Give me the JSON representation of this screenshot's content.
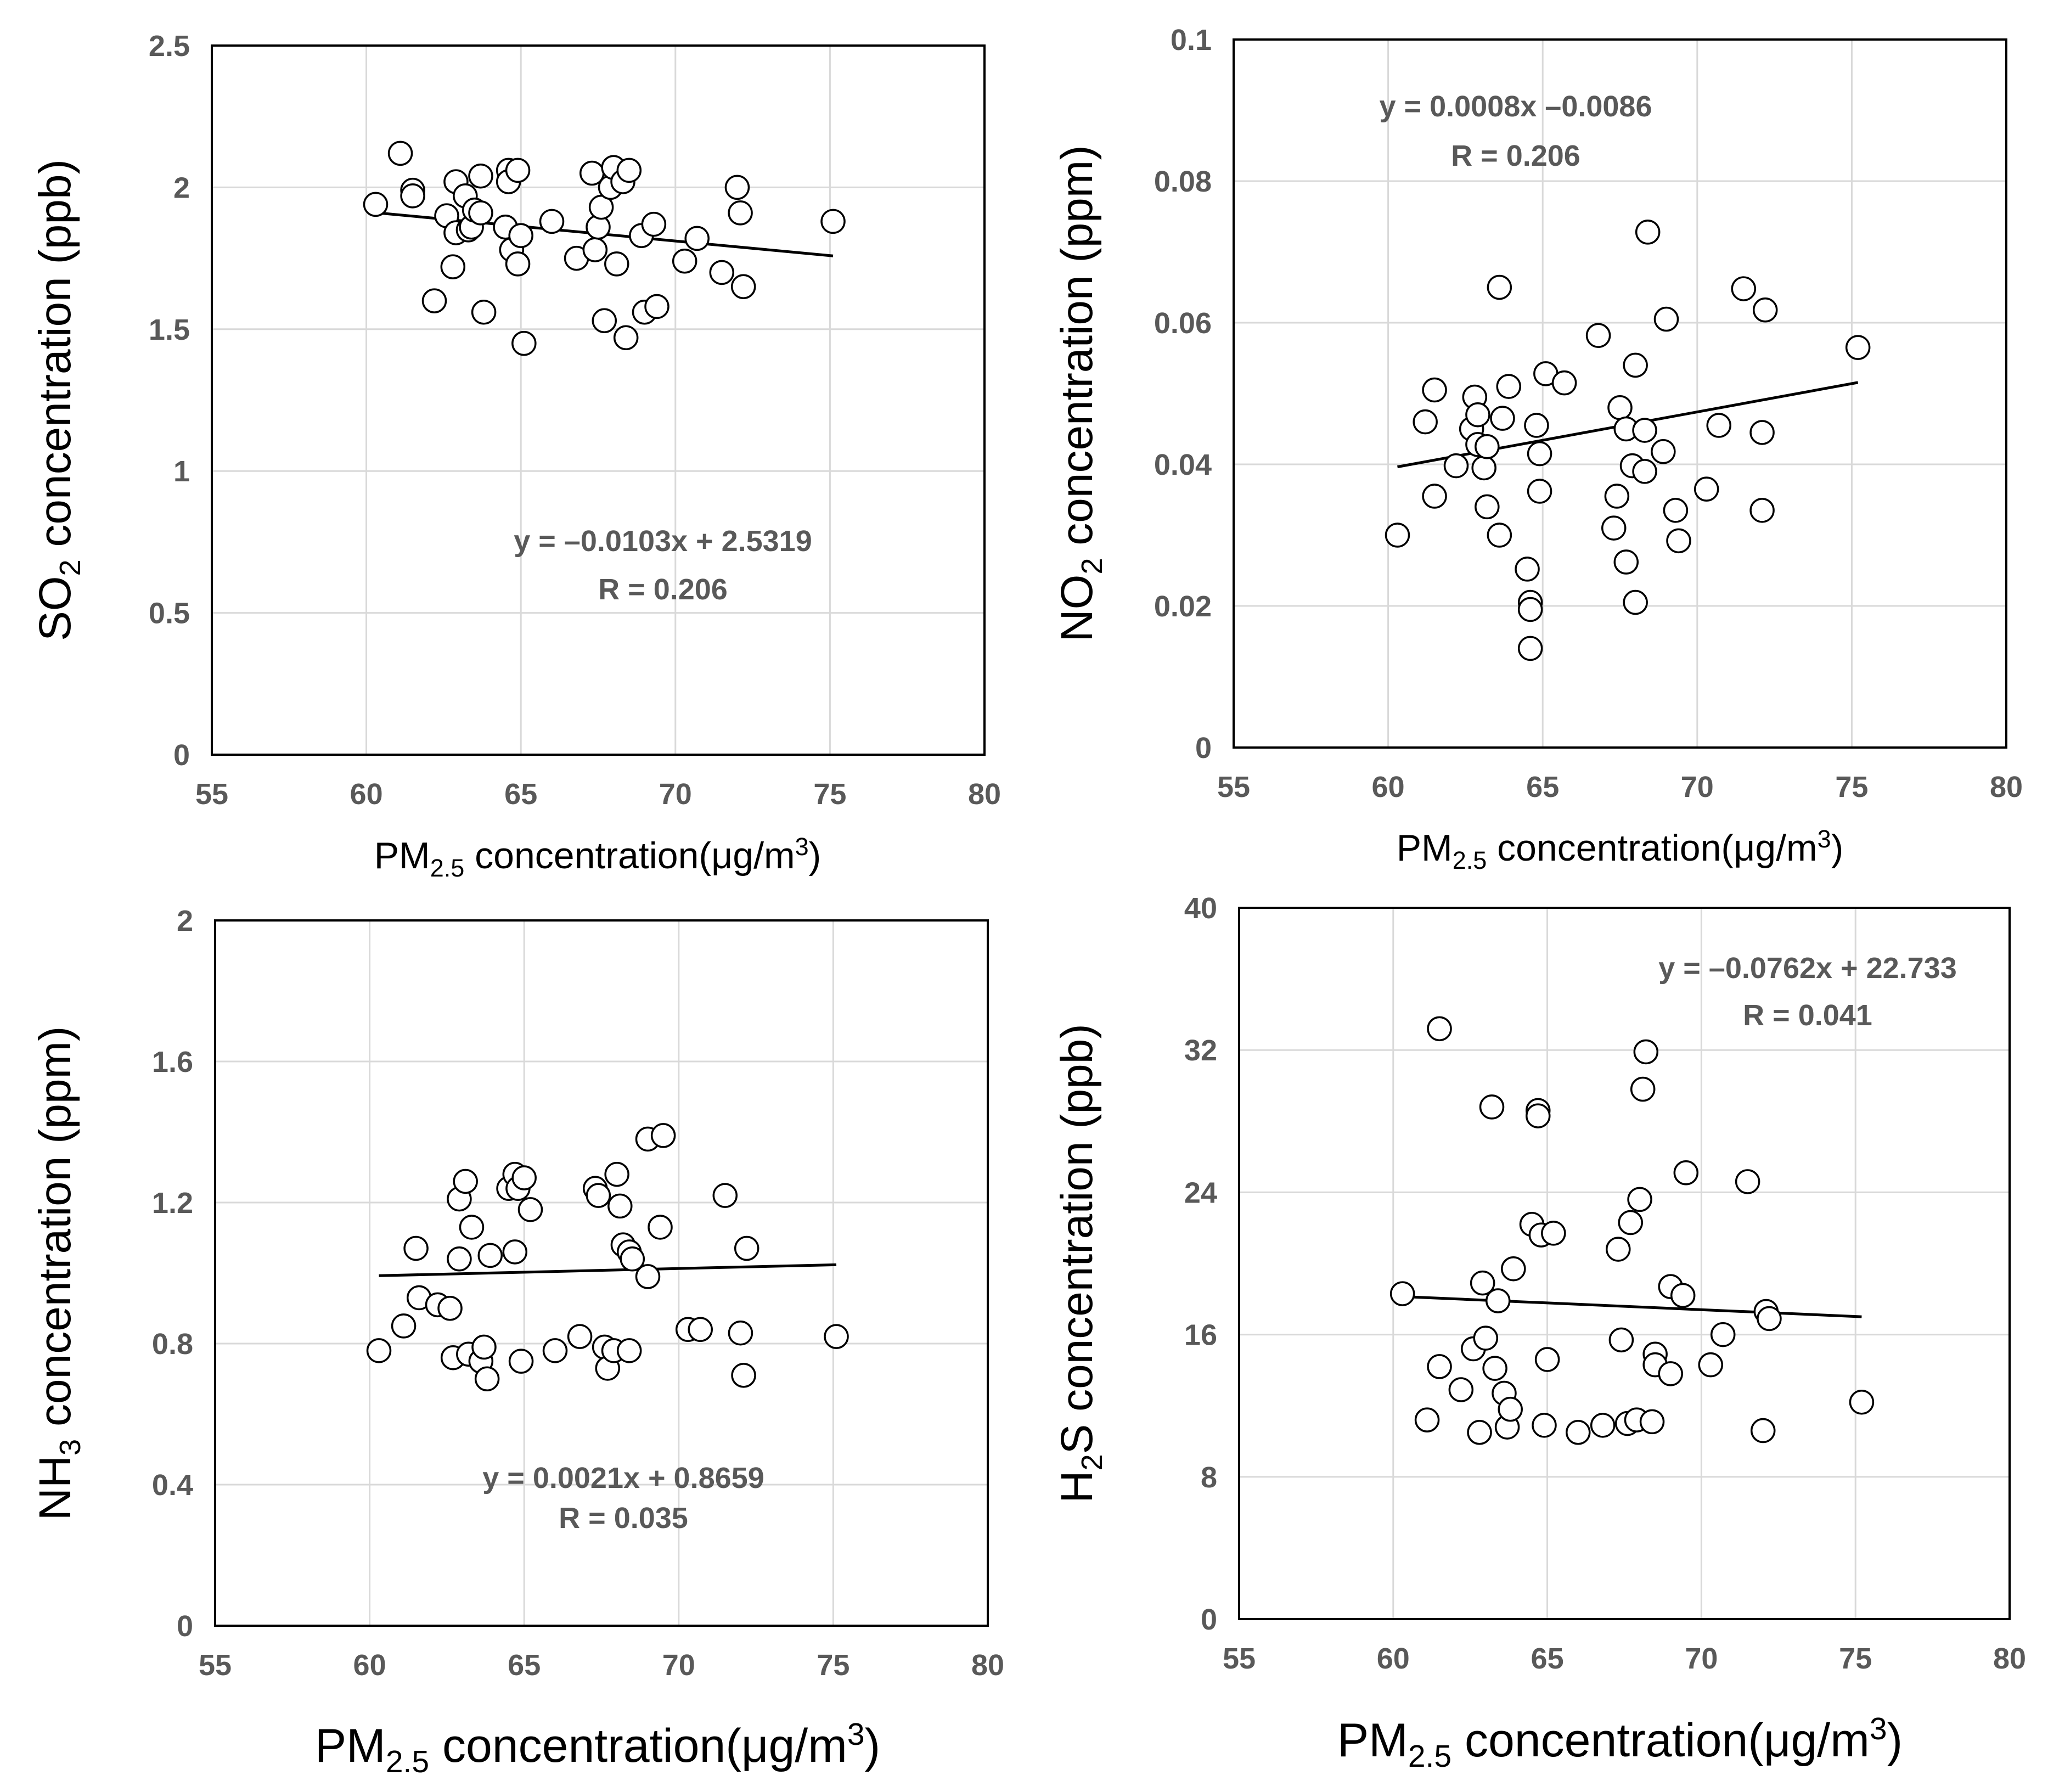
{
  "chart_data": [
    {
      "type": "scatter",
      "ylabel": {
        "main": "SO",
        "sub": "2",
        "rest": " concentration (ppb)"
      },
      "xlabel": {
        "main": "PM",
        "sub": "2.5",
        "rest": " concentration(μg/m",
        "sup": "3",
        "close": ")"
      },
      "xlim": [
        55,
        80
      ],
      "ylim": [
        0,
        2.5
      ],
      "xticks": [
        55,
        60,
        65,
        70,
        75,
        80
      ],
      "yticks": [
        0,
        0.5,
        1,
        1.5,
        2,
        2.5
      ],
      "ytick_labels": [
        "0",
        "0.5",
        "1",
        "1.5",
        "2",
        "2.5"
      ],
      "grid": true,
      "equation": "y = –0.0103x + 2.5319",
      "r_text": "R = 0.206",
      "trend": {
        "slope": -0.0103,
        "intercept": 2.5319,
        "x_range": [
          60.3,
          75.1
        ]
      },
      "points": [
        [
          60.3,
          1.94
        ],
        [
          61.1,
          2.12
        ],
        [
          61.5,
          1.99
        ],
        [
          61.5,
          1.97
        ],
        [
          62.2,
          1.6
        ],
        [
          62.6,
          1.9
        ],
        [
          62.8,
          1.72
        ],
        [
          62.9,
          2.02
        ],
        [
          62.9,
          1.84
        ],
        [
          63.2,
          1.97
        ],
        [
          63.3,
          1.85
        ],
        [
          63.4,
          1.86
        ],
        [
          63.5,
          1.92
        ],
        [
          63.7,
          1.91
        ],
        [
          63.7,
          2.04
        ],
        [
          63.8,
          1.56
        ],
        [
          64.5,
          1.86
        ],
        [
          64.6,
          2.06
        ],
        [
          64.6,
          2.02
        ],
        [
          64.7,
          1.78
        ],
        [
          64.9,
          2.06
        ],
        [
          64.9,
          1.73
        ],
        [
          65.0,
          1.83
        ],
        [
          65.1,
          1.45
        ],
        [
          66.0,
          1.88
        ],
        [
          66.8,
          1.75
        ],
        [
          67.3,
          2.05
        ],
        [
          67.4,
          1.78
        ],
        [
          67.5,
          1.86
        ],
        [
          67.6,
          1.93
        ],
        [
          67.7,
          1.53
        ],
        [
          67.9,
          2.0
        ],
        [
          68.0,
          2.07
        ],
        [
          68.1,
          1.73
        ],
        [
          68.3,
          2.02
        ],
        [
          68.4,
          1.47
        ],
        [
          68.5,
          2.06
        ],
        [
          68.9,
          1.83
        ],
        [
          69.0,
          1.56
        ],
        [
          69.3,
          1.87
        ],
        [
          69.4,
          1.58
        ],
        [
          70.3,
          1.74
        ],
        [
          70.7,
          1.82
        ],
        [
          71.5,
          1.7
        ],
        [
          72.0,
          2.0
        ],
        [
          72.1,
          1.91
        ],
        [
          72.2,
          1.65
        ],
        [
          75.1,
          1.88
        ]
      ]
    },
    {
      "type": "scatter",
      "ylabel": {
        "main": "NO",
        "sub": "2",
        "rest": " concentration (ppm)"
      },
      "xlabel": {
        "main": "PM",
        "sub": "2.5",
        "rest": " concentration(μg/m",
        "sup": "3",
        "close": ")"
      },
      "xlim": [
        55,
        80
      ],
      "ylim": [
        0,
        0.1
      ],
      "xticks": [
        55,
        60,
        65,
        70,
        75,
        80
      ],
      "yticks": [
        0,
        0.02,
        0.04,
        0.06,
        0.08,
        0.1
      ],
      "ytick_labels": [
        "0",
        "0.02",
        "0.04",
        "0.06",
        "0.08",
        "0.1"
      ],
      "grid": true,
      "equation": "y = 0.0008x –0.0086",
      "r_text": "R = 0.206",
      "trend": {
        "slope": 0.0008,
        "intercept": -0.0086,
        "x_range": [
          60.3,
          75.2
        ]
      },
      "points": [
        [
          60.3,
          0.03
        ],
        [
          61.2,
          0.046
        ],
        [
          61.5,
          0.0355
        ],
        [
          61.5,
          0.0505
        ],
        [
          62.2,
          0.0398
        ],
        [
          62.7,
          0.045
        ],
        [
          62.8,
          0.0495
        ],
        [
          62.9,
          0.0428
        ],
        [
          62.9,
          0.047
        ],
        [
          63.1,
          0.0395
        ],
        [
          63.2,
          0.0425
        ],
        [
          63.2,
          0.034
        ],
        [
          63.6,
          0.03
        ],
        [
          63.6,
          0.065
        ],
        [
          63.7,
          0.0465
        ],
        [
          63.9,
          0.051
        ],
        [
          64.5,
          0.0252
        ],
        [
          64.6,
          0.0205
        ],
        [
          64.6,
          0.0195
        ],
        [
          64.6,
          0.014
        ],
        [
          64.8,
          0.0455
        ],
        [
          64.9,
          0.0415
        ],
        [
          64.9,
          0.0362
        ],
        [
          65.1,
          0.0528
        ],
        [
          65.7,
          0.0515
        ],
        [
          66.8,
          0.0582
        ],
        [
          67.3,
          0.031
        ],
        [
          67.4,
          0.0355
        ],
        [
          67.5,
          0.048
        ],
        [
          67.7,
          0.0262
        ],
        [
          67.7,
          0.045
        ],
        [
          67.9,
          0.0398
        ],
        [
          68.0,
          0.054
        ],
        [
          68.0,
          0.0205
        ],
        [
          68.3,
          0.0448
        ],
        [
          68.3,
          0.039
        ],
        [
          68.4,
          0.0728
        ],
        [
          68.9,
          0.0418
        ],
        [
          69.0,
          0.0605
        ],
        [
          69.3,
          0.0335
        ],
        [
          69.4,
          0.0292
        ],
        [
          70.3,
          0.0365
        ],
        [
          70.7,
          0.0455
        ],
        [
          71.5,
          0.0648
        ],
        [
          72.1,
          0.0445
        ],
        [
          72.1,
          0.0335
        ],
        [
          72.2,
          0.0618
        ],
        [
          75.2,
          0.0565
        ]
      ]
    },
    {
      "type": "scatter",
      "ylabel": {
        "main": "NH",
        "sub": "3",
        "rest": " concentration (ppm)"
      },
      "xlabel": {
        "main": "PM",
        "sub": "2.5",
        "rest": " concentration(μg/m",
        "sup": "3",
        "close": ")"
      },
      "xlim": [
        55,
        80
      ],
      "ylim": [
        0,
        2
      ],
      "xticks": [
        55,
        60,
        65,
        70,
        75,
        80
      ],
      "yticks": [
        0,
        0.4,
        0.8,
        1.2,
        1.6,
        2
      ],
      "ytick_labels": [
        "0",
        "0.4",
        "0.8",
        "1.2",
        "1.6",
        "2"
      ],
      "grid": true,
      "equation": "y = 0.0021x + 0.8659",
      "r_text": "R = 0.035",
      "trend": {
        "slope": 0.0021,
        "intercept": 0.8659,
        "x_range": [
          60.3,
          75.1
        ]
      },
      "points": [
        [
          60.3,
          0.78
        ],
        [
          61.1,
          0.85
        ],
        [
          61.5,
          1.07
        ],
        [
          61.6,
          0.93
        ],
        [
          62.2,
          0.91
        ],
        [
          62.6,
          0.9
        ],
        [
          62.7,
          0.76
        ],
        [
          62.9,
          1.04
        ],
        [
          62.9,
          1.21
        ],
        [
          63.1,
          1.26
        ],
        [
          63.2,
          0.77
        ],
        [
          63.3,
          1.13
        ],
        [
          63.6,
          0.75
        ],
        [
          63.7,
          0.79
        ],
        [
          63.8,
          0.7
        ],
        [
          63.9,
          1.05
        ],
        [
          64.5,
          1.24
        ],
        [
          64.7,
          1.06
        ],
        [
          64.7,
          1.28
        ],
        [
          64.8,
          1.24
        ],
        [
          64.9,
          0.75
        ],
        [
          65.0,
          1.27
        ],
        [
          65.2,
          1.18
        ],
        [
          66.0,
          0.78
        ],
        [
          66.8,
          0.82
        ],
        [
          67.3,
          1.24
        ],
        [
          67.4,
          1.22
        ],
        [
          67.6,
          0.79
        ],
        [
          67.7,
          0.73
        ],
        [
          67.9,
          0.78
        ],
        [
          68.0,
          1.28
        ],
        [
          68.1,
          1.19
        ],
        [
          68.2,
          1.08
        ],
        [
          68.4,
          1.06
        ],
        [
          68.4,
          0.78
        ],
        [
          68.5,
          1.04
        ],
        [
          69.0,
          1.38
        ],
        [
          69.0,
          0.99
        ],
        [
          69.4,
          1.13
        ],
        [
          69.5,
          1.39
        ],
        [
          70.3,
          0.84
        ],
        [
          70.7,
          0.84
        ],
        [
          71.5,
          1.22
        ],
        [
          72.0,
          0.83
        ],
        [
          72.1,
          0.71
        ],
        [
          72.2,
          1.07
        ],
        [
          75.1,
          0.82
        ]
      ]
    },
    {
      "type": "scatter",
      "ylabel": {
        "main": "H",
        "sub": "2",
        "rest": "S concentration (ppb)"
      },
      "xlabel": {
        "main": "PM",
        "sub": "2.5",
        "rest": " concentration(μg/m",
        "sup": "3",
        "close": ")"
      },
      "xlim": [
        55,
        80
      ],
      "ylim": [
        0,
        40
      ],
      "xticks": [
        55,
        60,
        65,
        70,
        75,
        80
      ],
      "yticks": [
        0,
        8,
        16,
        24,
        32,
        40
      ],
      "ytick_labels": [
        "0",
        "8",
        "16",
        "24",
        "32",
        "40"
      ],
      "grid": true,
      "equation": "y = –0.0762x + 22.733",
      "r_text": "R = 0.041",
      "trend": {
        "slope": -0.0762,
        "intercept": 22.733,
        "x_range": [
          60.3,
          75.2
        ]
      },
      "points": [
        [
          60.3,
          18.3
        ],
        [
          61.1,
          11.2
        ],
        [
          61.5,
          33.2
        ],
        [
          61.5,
          14.2
        ],
        [
          62.2,
          12.9
        ],
        [
          62.6,
          15.2
        ],
        [
          62.8,
          10.5
        ],
        [
          62.9,
          18.9
        ],
        [
          63.0,
          15.8
        ],
        [
          63.2,
          28.8
        ],
        [
          63.3,
          14.1
        ],
        [
          63.4,
          17.9
        ],
        [
          63.6,
          12.7
        ],
        [
          63.7,
          10.8
        ],
        [
          63.8,
          11.8
        ],
        [
          63.9,
          19.7
        ],
        [
          64.5,
          22.2
        ],
        [
          64.7,
          28.6
        ],
        [
          64.7,
          28.3
        ],
        [
          64.8,
          21.6
        ],
        [
          64.9,
          10.9
        ],
        [
          65.0,
          14.6
        ],
        [
          65.2,
          21.7
        ],
        [
          66.0,
          10.5
        ],
        [
          66.8,
          10.9
        ],
        [
          67.3,
          20.8
        ],
        [
          67.4,
          15.7
        ],
        [
          67.6,
          11.0
        ],
        [
          67.7,
          22.3
        ],
        [
          67.9,
          11.2
        ],
        [
          68.0,
          23.6
        ],
        [
          68.1,
          29.8
        ],
        [
          68.2,
          31.9
        ],
        [
          68.4,
          11.1
        ],
        [
          68.5,
          14.9
        ],
        [
          68.5,
          14.3
        ],
        [
          69.0,
          18.7
        ],
        [
          69.0,
          13.8
        ],
        [
          69.4,
          18.2
        ],
        [
          69.5,
          25.1
        ],
        [
          70.3,
          14.3
        ],
        [
          70.7,
          16.0
        ],
        [
          71.5,
          24.6
        ],
        [
          72.0,
          10.6
        ],
        [
          72.1,
          17.3
        ],
        [
          72.2,
          16.9
        ],
        [
          75.2,
          12.2
        ]
      ]
    }
  ]
}
